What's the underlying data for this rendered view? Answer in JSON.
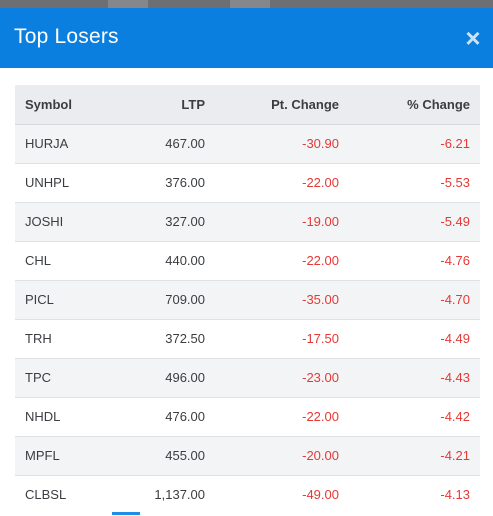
{
  "modal": {
    "title": "Top Losers",
    "close_icon": "close-icon",
    "close_glyph": "×"
  },
  "colors": {
    "header_bg": "#0a7fe0",
    "negative": "#e53935",
    "table_header_bg": "#eaecef"
  },
  "table": {
    "columns": [
      "Symbol",
      "LTP",
      "Pt. Change",
      "% Change"
    ],
    "rows": [
      {
        "symbol": "HURJA",
        "ltp": "467.00",
        "pt_change": "-30.90",
        "pct_change": "-6.21"
      },
      {
        "symbol": "UNHPL",
        "ltp": "376.00",
        "pt_change": "-22.00",
        "pct_change": "-5.53"
      },
      {
        "symbol": "JOSHI",
        "ltp": "327.00",
        "pt_change": "-19.00",
        "pct_change": "-5.49"
      },
      {
        "symbol": "CHL",
        "ltp": "440.00",
        "pt_change": "-22.00",
        "pct_change": "-4.76"
      },
      {
        "symbol": "PICL",
        "ltp": "709.00",
        "pt_change": "-35.00",
        "pct_change": "-4.70"
      },
      {
        "symbol": "TRH",
        "ltp": "372.50",
        "pt_change": "-17.50",
        "pct_change": "-4.49"
      },
      {
        "symbol": "TPC",
        "ltp": "496.00",
        "pt_change": "-23.00",
        "pct_change": "-4.43"
      },
      {
        "symbol": "NHDL",
        "ltp": "476.00",
        "pt_change": "-22.00",
        "pct_change": "-4.42"
      },
      {
        "symbol": "MPFL",
        "ltp": "455.00",
        "pt_change": "-20.00",
        "pct_change": "-4.21"
      },
      {
        "symbol": "CLBSL",
        "ltp": "1,137.00",
        "pt_change": "-49.00",
        "pct_change": "-4.13"
      }
    ]
  }
}
